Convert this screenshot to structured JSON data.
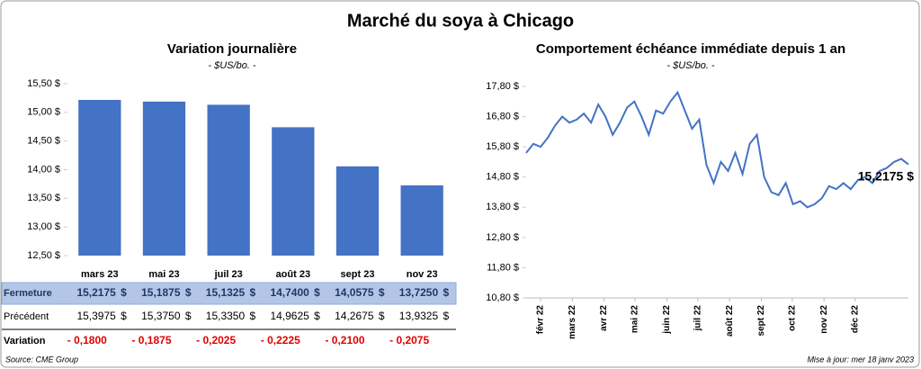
{
  "title": "Marché du soya à Chicago",
  "source": "Source: CME Group",
  "updated": "Mise à jour: mer 18 janv 2023",
  "chart_data": [
    {
      "type": "bar",
      "title": "Variation journalière",
      "subtitle": "- $US/bo. -",
      "categories": [
        "mars 23",
        "mai 23",
        "juil 23",
        "août 23",
        "sept 23",
        "nov 23"
      ],
      "values": [
        15.2175,
        15.1875,
        15.1325,
        14.74,
        14.0575,
        13.725
      ],
      "color": "#4472c4",
      "ylim": [
        12.5,
        15.5
      ],
      "yticks": [
        {
          "value": 12.5,
          "label": "12,50 $"
        },
        {
          "value": 13,
          "label": "13,00 $"
        },
        {
          "value": 13.5,
          "label": "13,50 $"
        },
        {
          "value": 14,
          "label": "14,00 $"
        },
        {
          "value": 14.5,
          "label": "14,50 $"
        },
        {
          "value": 15,
          "label": "15,00 $"
        },
        {
          "value": 15.5,
          "label": "15,50 $"
        }
      ]
    },
    {
      "type": "line",
      "title": "Comportement échéance immédiate depuis 1 an",
      "subtitle": "- $US/bo. -",
      "series": [
        {
          "color": "#4472c4",
          "values": [
            15.6,
            15.9,
            15.8,
            16.1,
            16.5,
            16.8,
            16.6,
            16.7,
            16.9,
            16.6,
            17.2,
            16.8,
            16.2,
            16.6,
            17.1,
            17.3,
            16.8,
            16.2,
            17.0,
            16.9,
            17.3,
            17.6,
            17.0,
            16.4,
            16.7,
            15.2,
            14.6,
            15.3,
            15.0,
            15.6,
            14.9,
            15.9,
            16.2,
            14.8,
            14.3,
            14.2,
            14.6,
            13.9,
            14.0,
            13.8,
            13.9,
            14.1,
            14.5,
            14.4,
            14.6,
            14.4,
            14.7,
            14.8,
            14.6,
            15.0,
            15.1,
            15.3,
            15.4,
            15.2175
          ]
        }
      ],
      "last_label": "15,2175 $",
      "xlim": [
        0,
        53
      ],
      "xticks": [
        {
          "value": 2,
          "label": "févr 22"
        },
        {
          "value": 6.4,
          "label": "mars 22"
        },
        {
          "value": 10.8,
          "label": "avr 22"
        },
        {
          "value": 15.1,
          "label": "mai 22"
        },
        {
          "value": 19.5,
          "label": "juin 22"
        },
        {
          "value": 23.8,
          "label": "juil 22"
        },
        {
          "value": 28.2,
          "label": "août 22"
        },
        {
          "value": 32.6,
          "label": "sept 22"
        },
        {
          "value": 36.9,
          "label": "oct 22"
        },
        {
          "value": 41.3,
          "label": "nov 22"
        },
        {
          "value": 45.6,
          "label": "déc 22"
        }
      ],
      "ylim": [
        10.8,
        17.8
      ],
      "yticks": [
        {
          "value": 10.8,
          "label": "10,80 $"
        },
        {
          "value": 11.8,
          "label": "11,80 $"
        },
        {
          "value": 12.8,
          "label": "12,80 $"
        },
        {
          "value": 13.8,
          "label": "13,80 $"
        },
        {
          "value": 14.8,
          "label": "14,80 $"
        },
        {
          "value": 15.8,
          "label": "15,80 $"
        },
        {
          "value": 16.8,
          "label": "16,80 $"
        },
        {
          "value": 17.8,
          "label": "17,80 $"
        }
      ]
    }
  ],
  "table": {
    "rows": [
      {
        "label": "Fermeture",
        "unit": "$",
        "cells": [
          "15,2175",
          "15,1875",
          "15,1325",
          "14,7400",
          "14,0575",
          "13,7250"
        ]
      },
      {
        "label": "Précédent",
        "unit": "$",
        "cells": [
          "15,3975",
          "15,3750",
          "15,3350",
          "14,9625",
          "14,2675",
          "13,9325"
        ]
      },
      {
        "label": "Variation",
        "cells": [
          "- 0,1800",
          "- 0,1875",
          "- 0,2025",
          "- 0,2225",
          "- 0,2100",
          "- 0,2075"
        ]
      }
    ]
  }
}
